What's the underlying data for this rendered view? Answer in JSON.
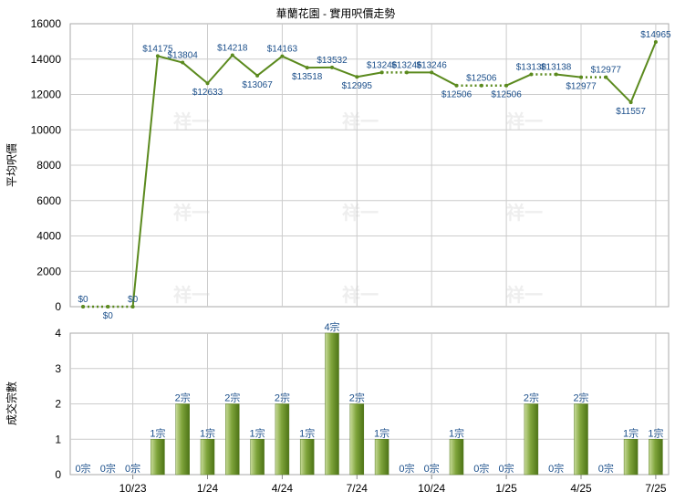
{
  "chart_data": [
    {
      "type": "line",
      "title": "華蘭花園 - 實用呎價走勢",
      "ylabel": "平均呎價",
      "ylim": [
        0,
        16000
      ],
      "yticks": [
        "0",
        "2000",
        "4000",
        "6000",
        "8000",
        "10000",
        "12000",
        "14000",
        "16000"
      ],
      "grid": true,
      "series": [
        {
          "color": "#5b8a1e",
          "points": [
            {
              "v": 0,
              "label": "$0",
              "dotted_after": true
            },
            {
              "v": 0,
              "label": "$0",
              "dotted_after": true
            },
            {
              "v": 0,
              "label": "$0",
              "dotted_after": false
            },
            {
              "v": 14175,
              "label": "$14175",
              "dotted_after": false
            },
            {
              "v": 13804,
              "label": "$13804",
              "dotted_after": false
            },
            {
              "v": 12633,
              "label": "$12633",
              "dotted_after": false
            },
            {
              "v": 14218,
              "label": "$14218",
              "dotted_after": false
            },
            {
              "v": 13067,
              "label": "$13067",
              "dotted_after": false
            },
            {
              "v": 14163,
              "label": "$14163",
              "dotted_after": false
            },
            {
              "v": 13518,
              "label": "$13518",
              "dotted_after": false
            },
            {
              "v": 13532,
              "label": "$13532",
              "dotted_after": false
            },
            {
              "v": 12995,
              "label": "$12995",
              "dotted_after": false
            },
            {
              "v": 13246,
              "label": "$13246",
              "dotted_after": true
            },
            {
              "v": 13246,
              "label": "$13246",
              "dotted_after": false
            },
            {
              "v": 13246,
              "label": "$13246",
              "dotted_after": false
            },
            {
              "v": 12506,
              "label": "$12506",
              "dotted_after": true
            },
            {
              "v": 12506,
              "label": "$12506",
              "dotted_after": true
            },
            {
              "v": 12506,
              "label": "$12506",
              "dotted_after": false
            },
            {
              "v": 13138,
              "label": "$13138",
              "dotted_after": true
            },
            {
              "v": 13138,
              "label": "$13138",
              "dotted_after": false
            },
            {
              "v": 12977,
              "label": "$12977",
              "dotted_after": true
            },
            {
              "v": 12977,
              "label": "$12977",
              "dotted_after": false
            },
            {
              "v": 11557,
              "label": "$11557",
              "dotted_after": false
            },
            {
              "v": 14965,
              "label": "$14965",
              "dotted_after": false
            }
          ]
        }
      ],
      "watermark": "祥一"
    },
    {
      "type": "bar",
      "ylabel": "成交宗數",
      "ylim": [
        0,
        4
      ],
      "yticks": [
        "0",
        "1",
        "2",
        "3",
        "4"
      ],
      "grid": true,
      "values": [
        0,
        0,
        0,
        1,
        2,
        1,
        2,
        1,
        2,
        1,
        4,
        2,
        1,
        0,
        0,
        1,
        0,
        0,
        2,
        0,
        2,
        0,
        1,
        1
      ],
      "value_labels": [
        "0宗",
        "0宗",
        "0宗",
        "1宗",
        "2宗",
        "1宗",
        "2宗",
        "1宗",
        "2宗",
        "1宗",
        "4宗",
        "2宗",
        "1宗",
        "0宗",
        "0宗",
        "1宗",
        "0宗",
        "0宗",
        "2宗",
        "0宗",
        "2宗",
        "0宗",
        "1宗",
        "1宗"
      ],
      "x_tick_labels": [
        {
          "label": "10/23",
          "index": 2
        },
        {
          "label": "1/24",
          "index": 5
        },
        {
          "label": "4/24",
          "index": 8
        },
        {
          "label": "7/24",
          "index": 11
        },
        {
          "label": "10/24",
          "index": 14
        },
        {
          "label": "1/25",
          "index": 17
        },
        {
          "label": "4/25",
          "index": 20
        },
        {
          "label": "7/25",
          "index": 23
        }
      ],
      "color": "#7aa23a"
    }
  ]
}
